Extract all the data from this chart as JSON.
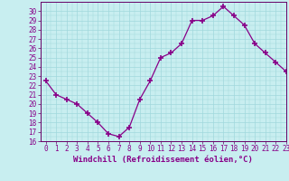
{
  "x": [
    0,
    1,
    2,
    3,
    4,
    5,
    6,
    7,
    8,
    9,
    10,
    11,
    12,
    13,
    14,
    15,
    16,
    17,
    18,
    19,
    20,
    21,
    22,
    23
  ],
  "y": [
    22.5,
    21.0,
    20.5,
    20.0,
    19.0,
    18.0,
    16.8,
    16.5,
    17.5,
    20.5,
    22.5,
    25.0,
    25.5,
    26.5,
    29.0,
    29.0,
    29.5,
    30.5,
    29.5,
    28.5,
    26.5,
    25.5,
    24.5,
    23.5
  ],
  "line_color": "#880088",
  "marker": "+",
  "marker_size": 4,
  "marker_linewidth": 1.2,
  "bg_color": "#c8eef0",
  "grid_color": "#a0d8dc",
  "xlabel": "Windchill (Refroidissement éolien,°C)",
  "ylim": [
    16,
    31
  ],
  "xlim": [
    -0.5,
    23
  ],
  "yticks": [
    16,
    17,
    18,
    19,
    20,
    21,
    22,
    23,
    24,
    25,
    26,
    27,
    28,
    29,
    30
  ],
  "xticks": [
    0,
    1,
    2,
    3,
    4,
    5,
    6,
    7,
    8,
    9,
    10,
    11,
    12,
    13,
    14,
    15,
    16,
    17,
    18,
    19,
    20,
    21,
    22,
    23
  ],
  "tick_fontsize": 5.5,
  "xlabel_fontsize": 6.5,
  "spine_color": "#660066",
  "axis_bg": "#c8eef0"
}
